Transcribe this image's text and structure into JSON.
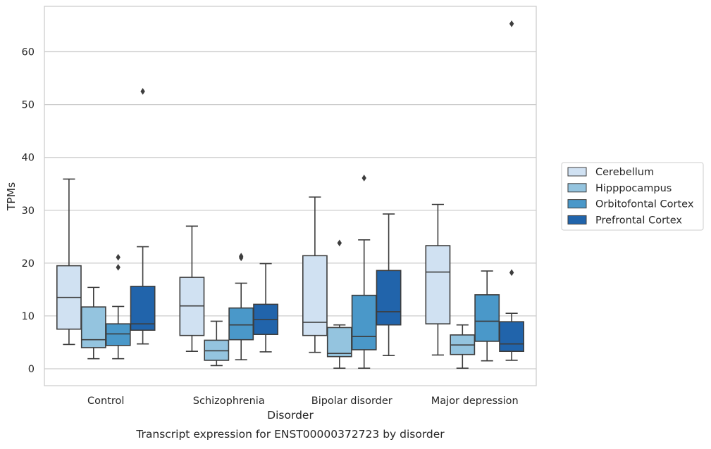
{
  "chart_data": {
    "type": "box",
    "xlabel": "Disorder",
    "ylabel": "TPMs",
    "caption": "Transcript expression for ENST00000372723 by disorder",
    "ylim": [
      -3.2,
      68.6
    ],
    "yticks": [
      0,
      10,
      20,
      30,
      40,
      50,
      60
    ],
    "grid": true,
    "legend_position": "right",
    "categories": [
      "Control",
      "Schizophrenia",
      "Bipolar disorder",
      "Major depression"
    ],
    "series": [
      {
        "name": "Cerebellum",
        "color": "#d0e1f2",
        "boxes": [
          {
            "whislo": 4.6,
            "q1": 7.5,
            "med": 13.5,
            "q3": 19.5,
            "whishi": 35.9,
            "fliers": []
          },
          {
            "whislo": 3.3,
            "q1": 6.3,
            "med": 11.9,
            "q3": 17.3,
            "whishi": 27.0,
            "fliers": []
          },
          {
            "whislo": 3.1,
            "q1": 6.3,
            "med": 8.8,
            "q3": 21.4,
            "whishi": 32.5,
            "fliers": []
          },
          {
            "whislo": 2.6,
            "q1": 8.5,
            "med": 18.3,
            "q3": 23.3,
            "whishi": 31.1,
            "fliers": []
          }
        ]
      },
      {
        "name": "Hipppocampus",
        "color": "#94c4df",
        "boxes": [
          {
            "whislo": 1.9,
            "q1": 4.0,
            "med": 5.5,
            "q3": 11.7,
            "whishi": 15.4,
            "fliers": []
          },
          {
            "whislo": 0.6,
            "q1": 1.6,
            "med": 3.4,
            "q3": 5.4,
            "whishi": 9.0,
            "fliers": []
          },
          {
            "whislo": 0.1,
            "q1": 2.3,
            "med": 2.9,
            "q3": 7.8,
            "whishi": 8.3,
            "fliers": [
              23.8
            ]
          },
          {
            "whislo": 0.1,
            "q1": 2.7,
            "med": 4.5,
            "q3": 6.4,
            "whishi": 8.3,
            "fliers": []
          }
        ]
      },
      {
        "name": "Orbitofontal Cortex",
        "color": "#4a98c9",
        "boxes": [
          {
            "whislo": 1.9,
            "q1": 4.4,
            "med": 6.6,
            "q3": 8.5,
            "whishi": 11.8,
            "fliers": [
              19.2,
              21.1
            ]
          },
          {
            "whislo": 1.7,
            "q1": 5.5,
            "med": 8.3,
            "q3": 11.5,
            "whishi": 16.2,
            "fliers": [
              21.0,
              21.3
            ]
          },
          {
            "whislo": 0.1,
            "q1": 3.6,
            "med": 6.1,
            "q3": 13.9,
            "whishi": 24.4,
            "fliers": [
              36.1
            ]
          },
          {
            "whislo": 1.5,
            "q1": 5.2,
            "med": 9.0,
            "q3": 14.0,
            "whishi": 18.5,
            "fliers": []
          }
        ]
      },
      {
        "name": "Prefrontal Cortex",
        "color": "#2164ab",
        "boxes": [
          {
            "whislo": 4.7,
            "q1": 7.3,
            "med": 8.5,
            "q3": 15.6,
            "whishi": 23.1,
            "fliers": [
              52.5
            ]
          },
          {
            "whislo": 3.2,
            "q1": 6.5,
            "med": 9.3,
            "q3": 12.2,
            "whishi": 19.9,
            "fliers": []
          },
          {
            "whislo": 2.5,
            "q1": 8.3,
            "med": 10.8,
            "q3": 18.6,
            "whishi": 29.3,
            "fliers": []
          },
          {
            "whislo": 1.6,
            "q1": 3.3,
            "med": 4.7,
            "q3": 8.9,
            "whishi": 10.5,
            "fliers": [
              18.2,
              65.3
            ]
          }
        ]
      }
    ]
  }
}
